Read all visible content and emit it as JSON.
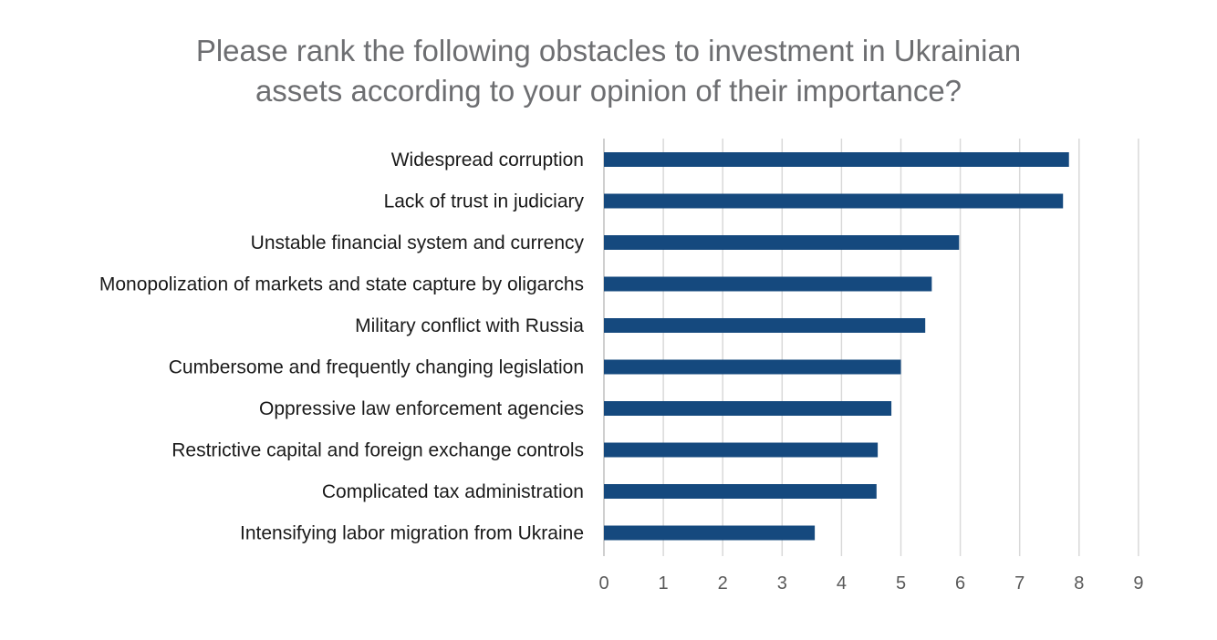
{
  "chart_data": {
    "type": "bar",
    "orientation": "horizontal",
    "title_lines": [
      "Please rank the following obstacles to investment in Ukrainian",
      "assets according to your opinion of their importance?"
    ],
    "categories": [
      "Widespread corruption",
      "Lack of trust in judiciary",
      "Unstable financial system and currency",
      "Monopolization of markets and state capture by oligarchs",
      "Military conflict with Russia",
      "Cumbersome and frequently changing legislation",
      "Oppressive law enforcement agencies",
      "Restrictive capital and foreign exchange controls",
      "Complicated tax administration",
      "Intensifying labor migration from Ukraine"
    ],
    "values": [
      7.83,
      7.73,
      5.98,
      5.52,
      5.41,
      5.0,
      4.84,
      4.61,
      4.59,
      3.55
    ],
    "xlim": [
      0,
      9
    ],
    "x_ticks": [
      "0",
      "1",
      "2",
      "3",
      "4",
      "5",
      "6",
      "7",
      "8",
      "9"
    ],
    "grid": true,
    "bar_color": "#15497e"
  }
}
